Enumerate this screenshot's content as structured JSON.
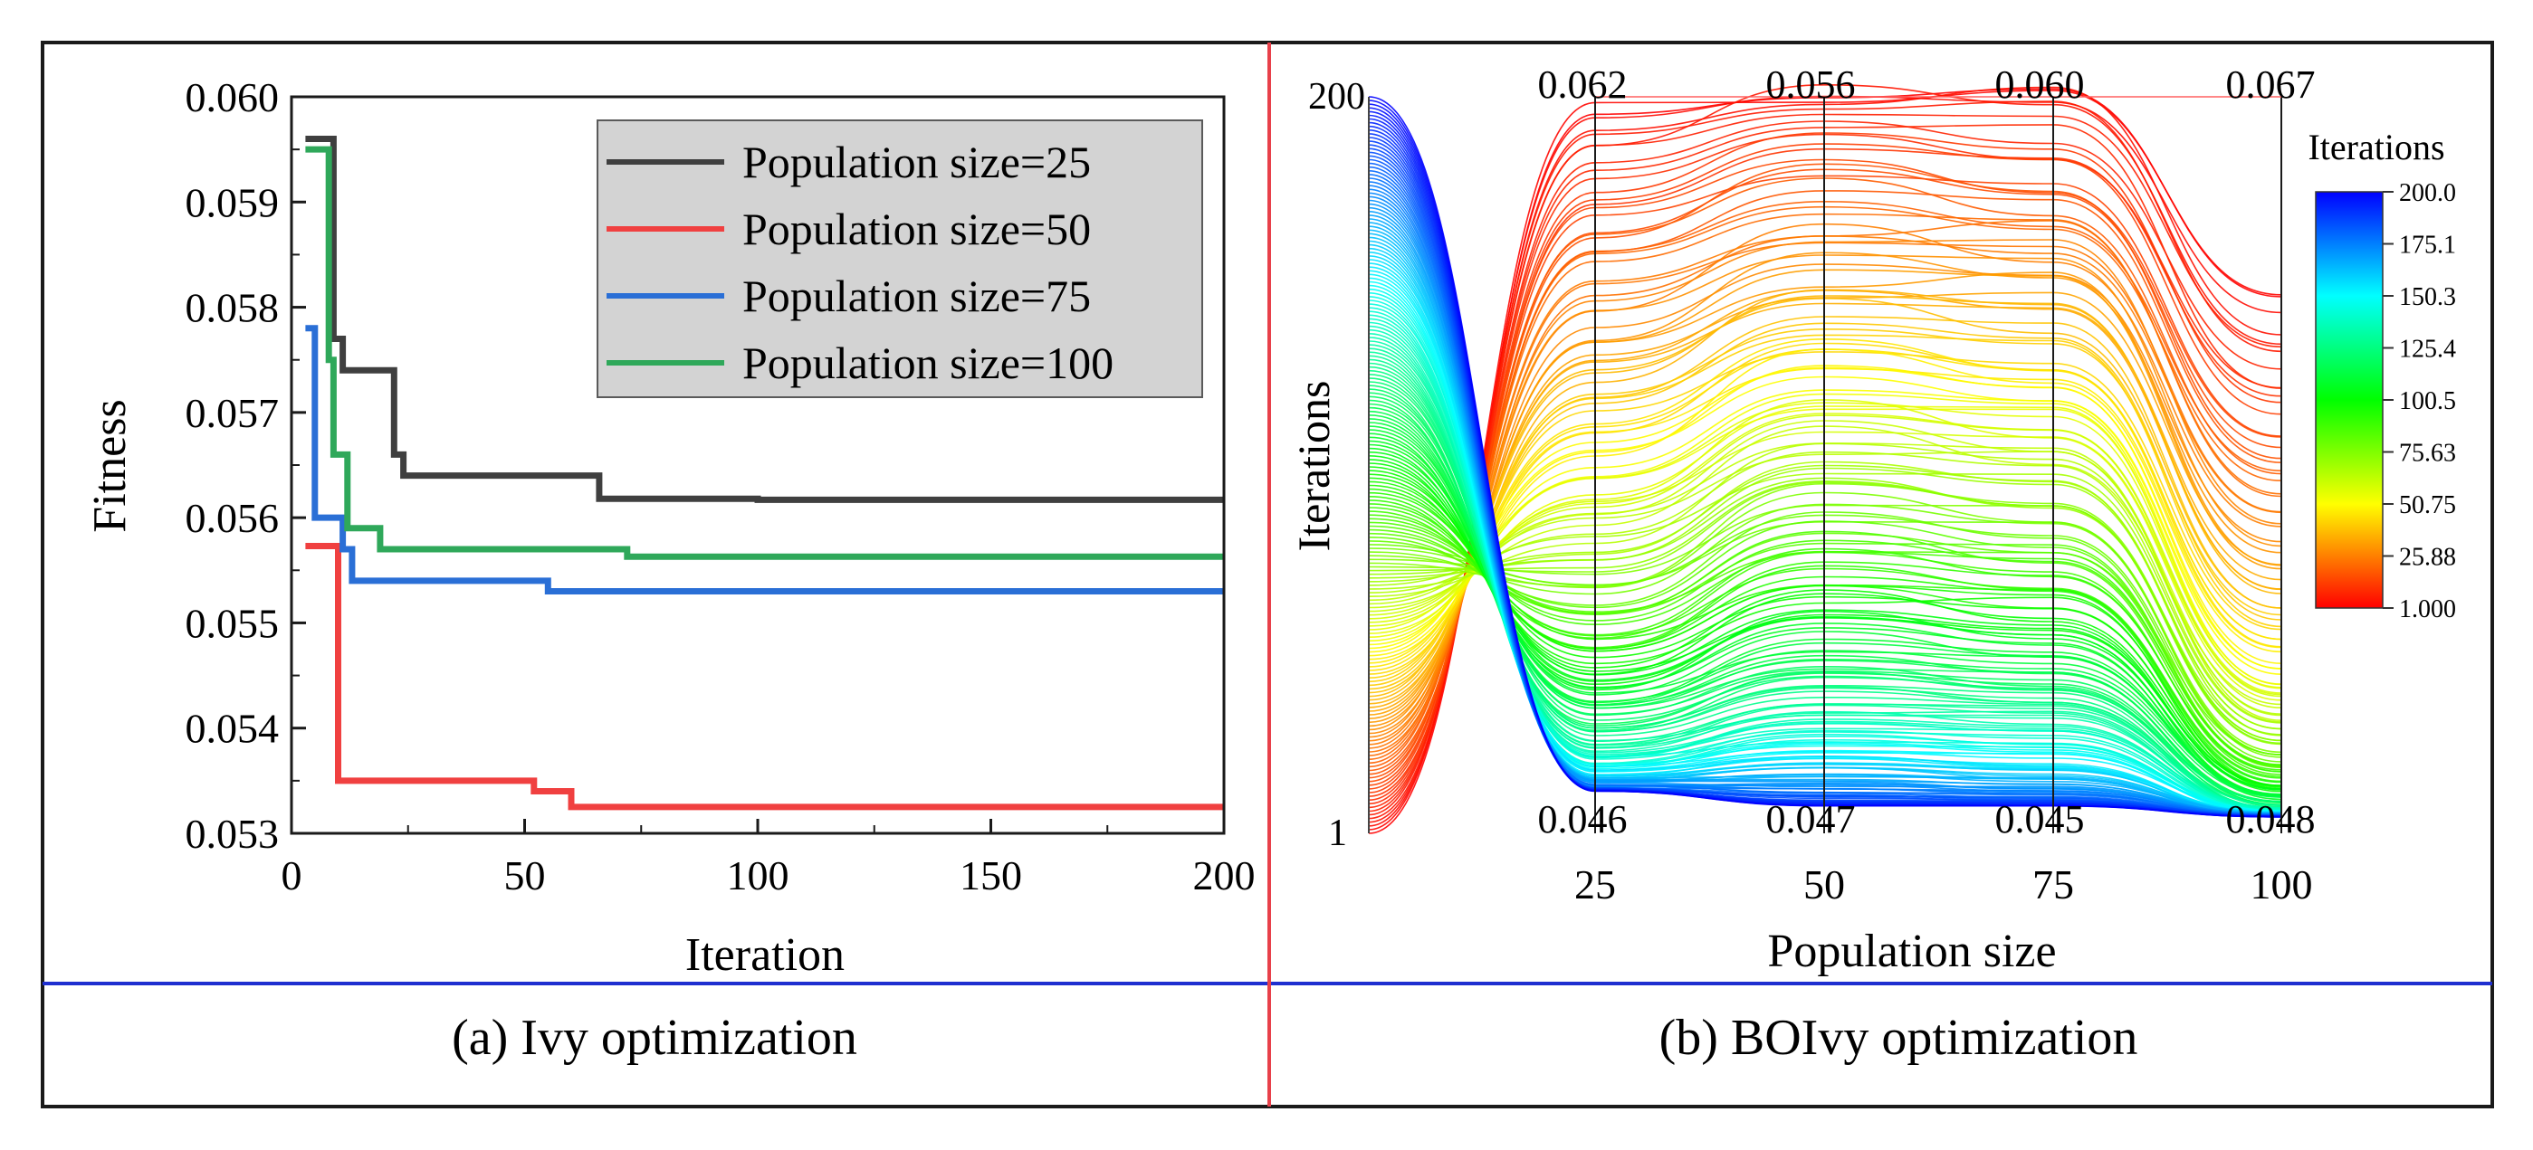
{
  "captions": {
    "left": "(a) Ivy optimization",
    "right": "(b) BOIvy optimization"
  },
  "chart_data": [
    {
      "type": "line",
      "xlabel": "Iteration",
      "ylabel": "Fitness",
      "xlim": [
        0,
        200
      ],
      "ylim": [
        0.053,
        0.06
      ],
      "xticks": [
        0,
        50,
        100,
        150,
        200
      ],
      "yticks": [
        0.053,
        0.054,
        0.055,
        0.056,
        0.057,
        0.058,
        0.059,
        0.06
      ],
      "ytick_labels": [
        "0.053",
        "0.054",
        "0.055",
        "0.056",
        "0.057",
        "0.058",
        "0.059",
        "0.060"
      ],
      "grid": false,
      "legend": "top-right",
      "series": [
        {
          "name": "Population size=25",
          "color": "#3f3f3f",
          "points": [
            [
              3,
              0.0596
            ],
            [
              9,
              0.0596
            ],
            [
              9,
              0.0577
            ],
            [
              11,
              0.0577
            ],
            [
              11,
              0.0574
            ],
            [
              22,
              0.0574
            ],
            [
              22,
              0.0566
            ],
            [
              24,
              0.0566
            ],
            [
              24,
              0.0564
            ],
            [
              66,
              0.0564
            ],
            [
              66,
              0.05618
            ],
            [
              100,
              0.05618
            ],
            [
              100,
              0.05617
            ],
            [
              200,
              0.05617
            ]
          ]
        },
        {
          "name": "Population size=50",
          "color": "#f04040",
          "points": [
            [
              3,
              0.05573
            ],
            [
              10,
              0.05573
            ],
            [
              10,
              0.0535
            ],
            [
              52,
              0.0535
            ],
            [
              52,
              0.0534
            ],
            [
              60,
              0.0534
            ],
            [
              60,
              0.05325
            ],
            [
              200,
              0.05325
            ]
          ]
        },
        {
          "name": "Population size=75",
          "color": "#2a6fd6",
          "points": [
            [
              3,
              0.0578
            ],
            [
              5,
              0.0578
            ],
            [
              5,
              0.056
            ],
            [
              11,
              0.056
            ],
            [
              11,
              0.0557
            ],
            [
              13,
              0.0557
            ],
            [
              13,
              0.0554
            ],
            [
              55,
              0.0554
            ],
            [
              55,
              0.0553
            ],
            [
              200,
              0.0553
            ]
          ]
        },
        {
          "name": "Population size=100",
          "color": "#2fa85a",
          "points": [
            [
              3,
              0.0595
            ],
            [
              8,
              0.0595
            ],
            [
              8,
              0.0575
            ],
            [
              9,
              0.0575
            ],
            [
              9,
              0.0566
            ],
            [
              12,
              0.0566
            ],
            [
              12,
              0.0559
            ],
            [
              19,
              0.0559
            ],
            [
              19,
              0.0557
            ],
            [
              72,
              0.0557
            ],
            [
              72,
              0.05563
            ],
            [
              200,
              0.05563
            ]
          ]
        }
      ]
    },
    {
      "type": "parallel-coordinates",
      "xlabel": "Population size",
      "ylabel": "Iterations",
      "axes": [
        "25",
        "50",
        "75",
        "100"
      ],
      "axis_top_labels": [
        "0.062",
        "0.056",
        "0.060",
        "0.067"
      ],
      "axis_bottom_labels": [
        "0.046",
        "0.047",
        "0.045",
        "0.048"
      ],
      "iteration_axis": {
        "top": "200",
        "bottom": "1"
      },
      "colorbar": {
        "title": "Iterations",
        "min": 1,
        "max": 200,
        "ticks": [
          "200.0",
          "175.1",
          "150.3",
          "125.4",
          "100.5",
          "75.63",
          "50.75",
          "25.88",
          "1.000"
        ],
        "colors": [
          "#0000ff",
          "#00ffff",
          "#00ff00",
          "#ffff00",
          "#ff0000"
        ]
      },
      "line_count": 200
    }
  ]
}
